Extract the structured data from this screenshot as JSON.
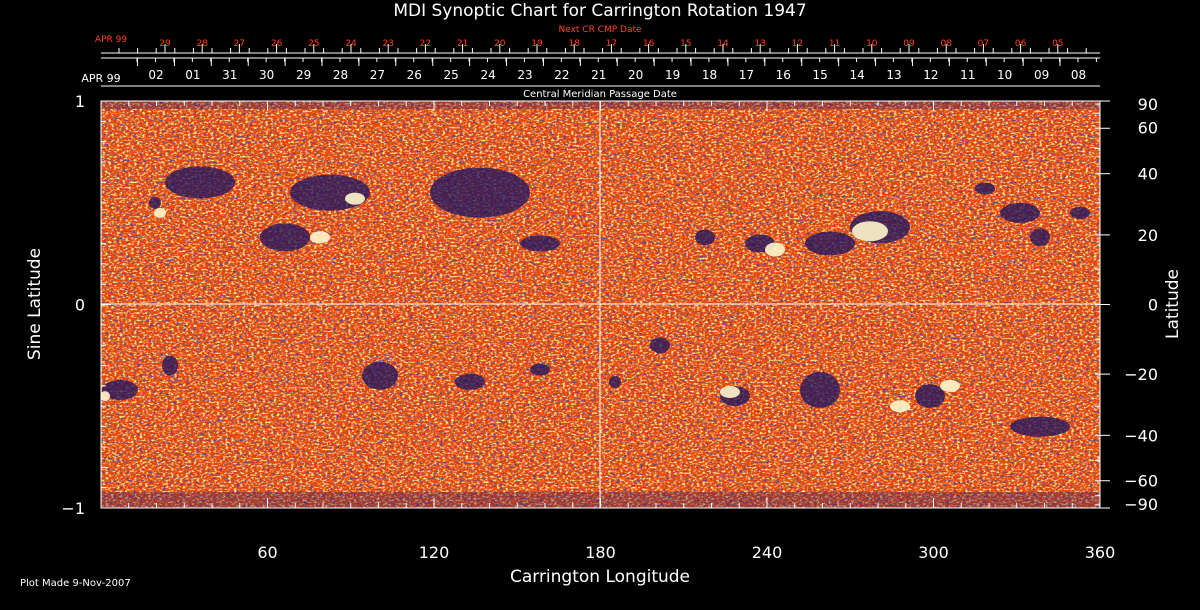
{
  "chart_data": {
    "type": "heatmap",
    "title": "MDI Synoptic Chart for Carrington Rotation 1947",
    "xlabel": "Carrington Longitude",
    "ylabel_left": "Sine Latitude",
    "ylabel_right": "Latitude",
    "top_label_red": "Next CR CMP Date",
    "top_label_white": "Central Meridian Passage Date",
    "top_month_red": "APR 99",
    "top_month_white": "APR 99",
    "xlim": [
      0,
      360
    ],
    "ylim": [
      -1,
      1
    ],
    "x_ticks": [
      60,
      120,
      180,
      240,
      300,
      360
    ],
    "y_ticks_left": [
      1,
      0,
      -1
    ],
    "y_ticks_left_labels": [
      "1",
      "0",
      "−1"
    ],
    "y_ticks_right": [
      90,
      60,
      40,
      20,
      0,
      -20,
      -40,
      -60,
      -90
    ],
    "y_ticks_right_labels": [
      "90",
      "60",
      "40",
      "20",
      "0",
      "−20",
      "−40",
      "−60",
      "−90"
    ],
    "next_cr_dates": [
      "29",
      "28",
      "27",
      "26",
      "25",
      "24",
      "23",
      "22",
      "21",
      "20",
      "19",
      "18",
      "17",
      "16",
      "15",
      "14",
      "13",
      "12",
      "11",
      "10",
      "09",
      "08",
      "07",
      "06",
      "05"
    ],
    "cmp_dates": [
      "02",
      "01",
      "31",
      "30",
      "29",
      "28",
      "27",
      "26",
      "25",
      "24",
      "23",
      "22",
      "21",
      "20",
      "19",
      "18",
      "17",
      "16",
      "15",
      "14",
      "13",
      "12",
      "11",
      "10",
      "09",
      "08"
    ],
    "colors": {
      "background": "#000000",
      "field_base": "#e8470a",
      "field_light": "#ffdd55",
      "field_dark": "#1a1260",
      "red_text": "#ff4422"
    }
  },
  "footer": {
    "plot_made": "Plot Made  9-Nov-2007"
  }
}
